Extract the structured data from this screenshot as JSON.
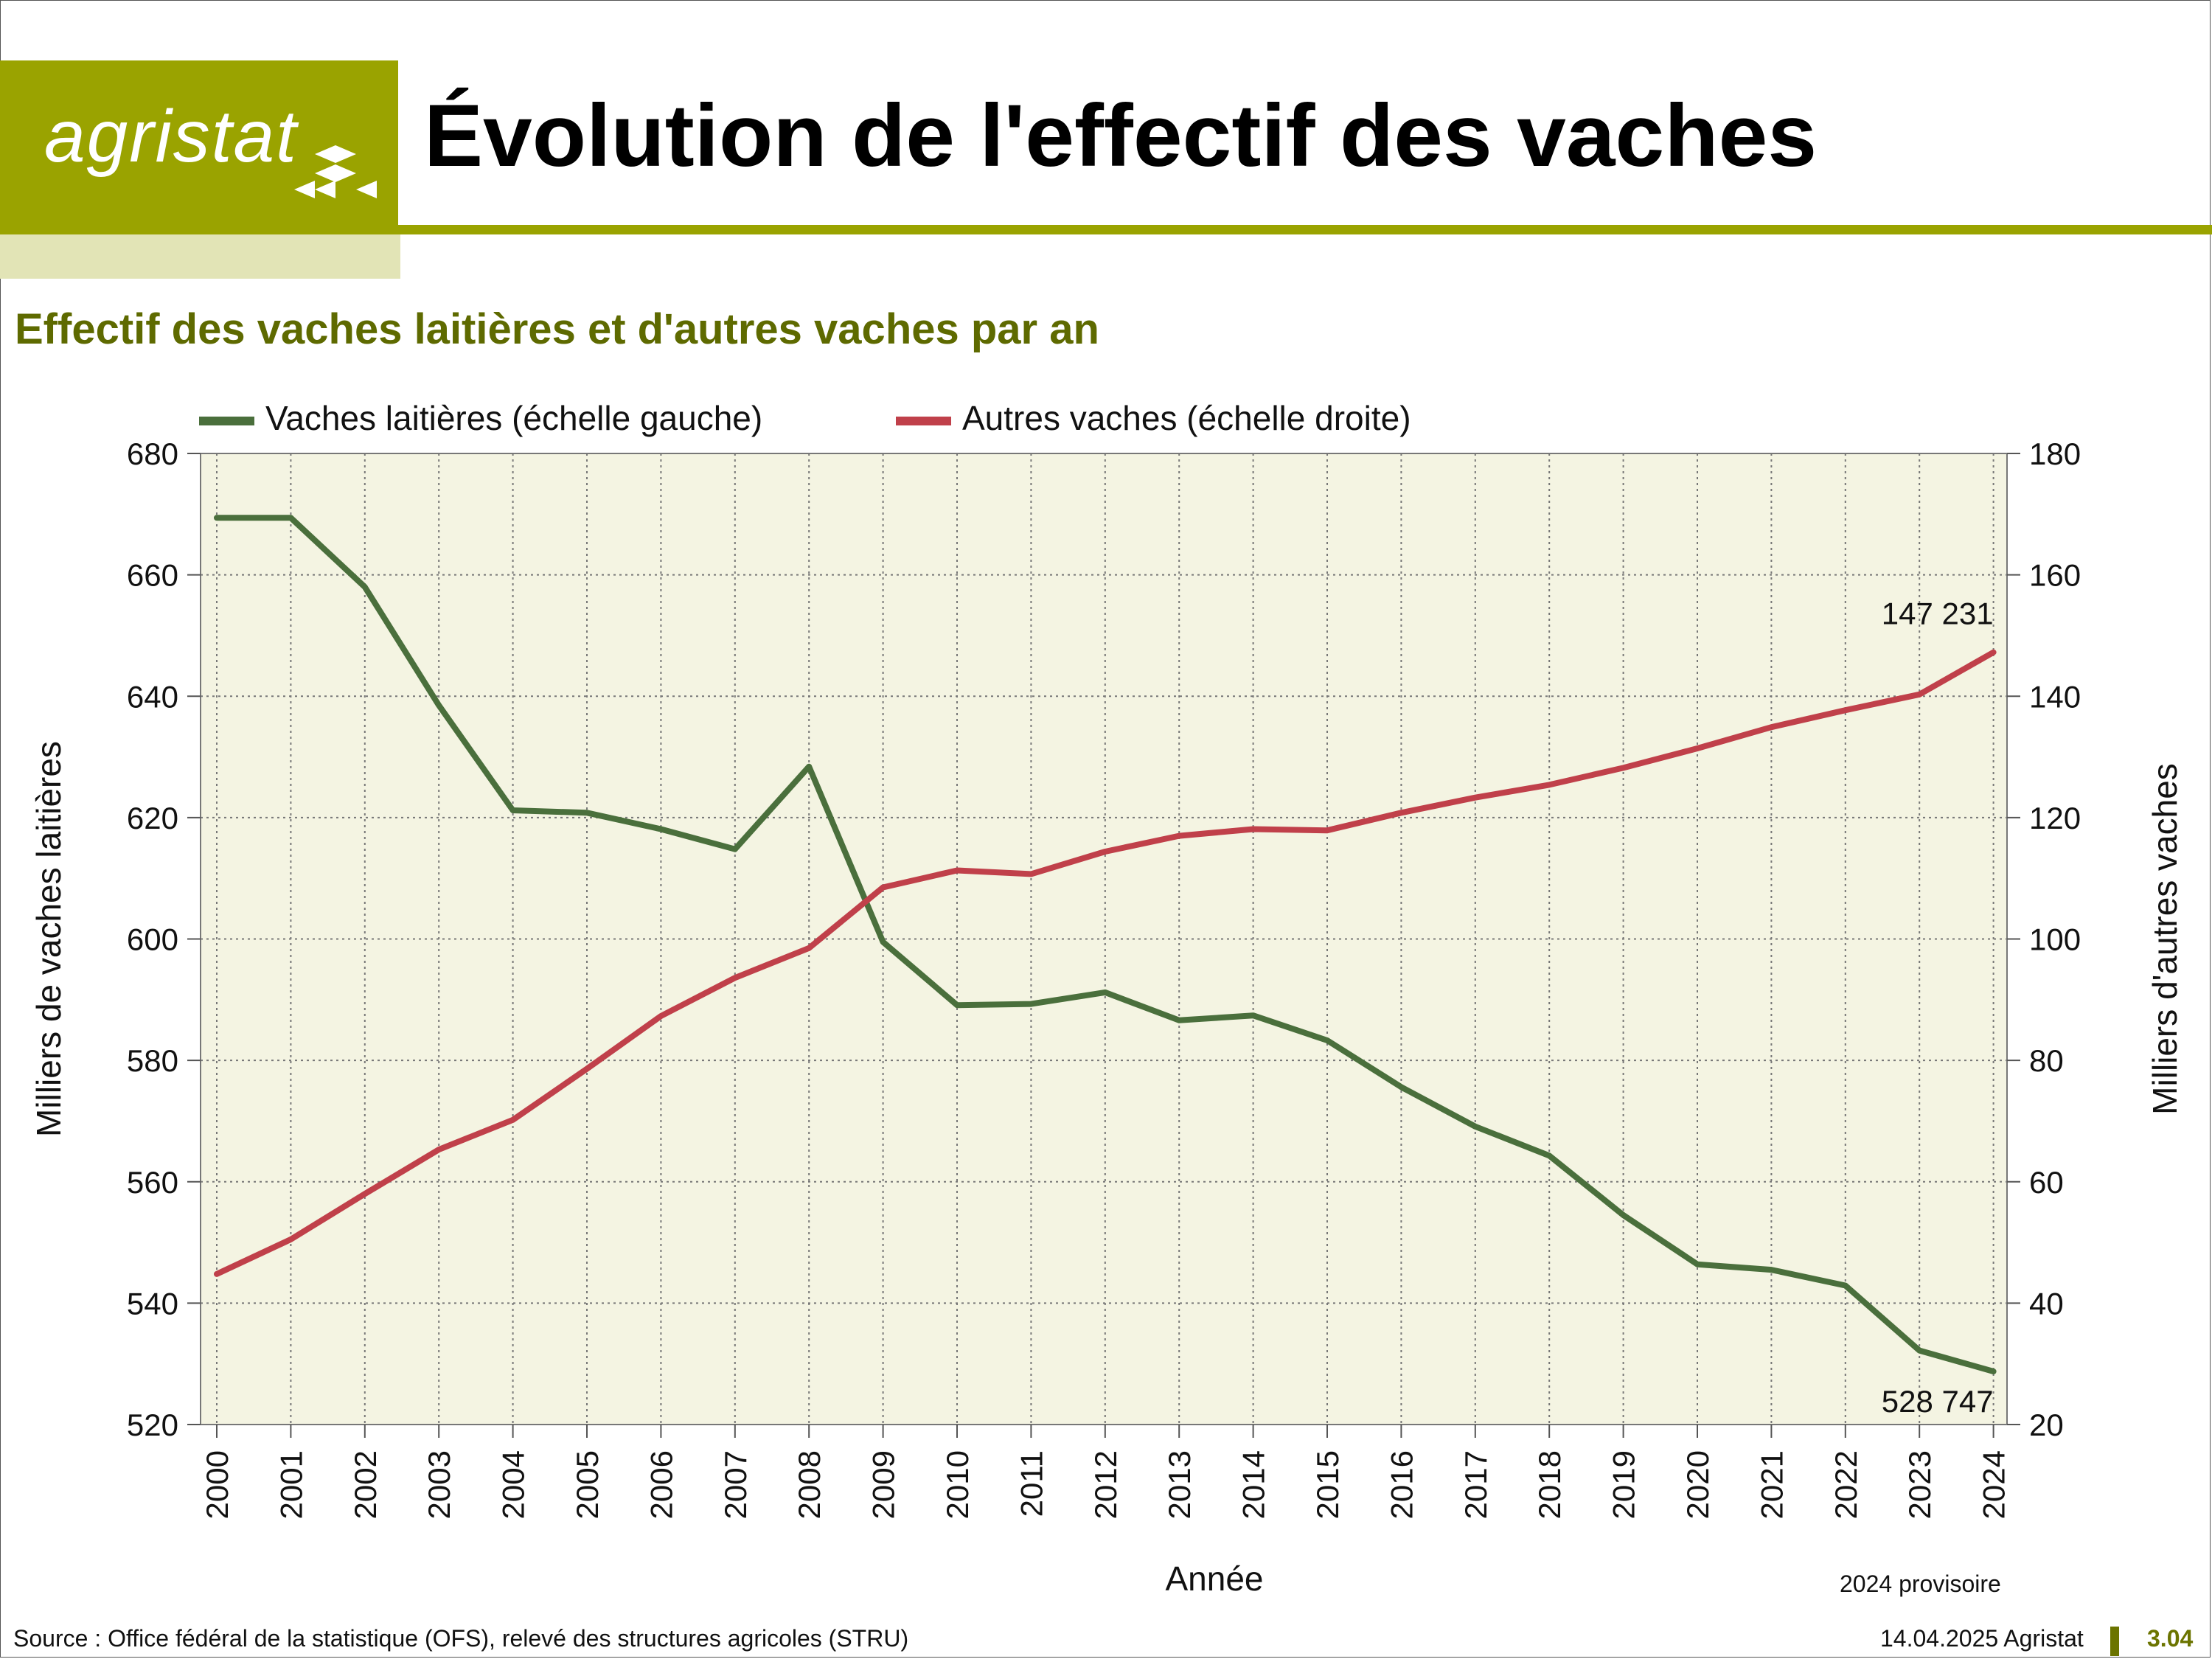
{
  "header": {
    "logo_text": "agristat",
    "title": "Évolution de l'effectif des vaches"
  },
  "subtitle": "Effectif des vaches laitières et d'autres vaches par an",
  "note": "2024 provisoire",
  "footer": {
    "source": "Source : Office fédéral de la statistique (OFS), relevé des structures agricoles (STRU)",
    "date": "14.04.2025 Agristat",
    "page": "3.04"
  },
  "colors": {
    "brand": "#9aa300",
    "brand_light": "#e2e4b6",
    "plot_bg": "#f4f4e2",
    "dairy": "#4a6f3c",
    "other": "#c0404a"
  },
  "chart_data": {
    "type": "line",
    "xlabel": "Année",
    "ylabel_left": "Milliers de vaches laitières",
    "ylabel_right": "Milliers d'autres vaches",
    "grid": true,
    "legend_position": "top",
    "categories": [
      "2000",
      "2001",
      "2002",
      "2003",
      "2004",
      "2005",
      "2006",
      "2007",
      "2008",
      "2009",
      "2010",
      "2011",
      "2012",
      "2013",
      "2014",
      "2015",
      "2016",
      "2017",
      "2018",
      "2019",
      "2020",
      "2021",
      "2022",
      "2023",
      "2024"
    ],
    "ylim_left": [
      520,
      680
    ],
    "yticks_left": [
      520,
      540,
      560,
      580,
      600,
      620,
      640,
      660,
      680
    ],
    "ylim_right": [
      20,
      180
    ],
    "yticks_right": [
      20,
      40,
      60,
      80,
      100,
      120,
      140,
      160,
      180
    ],
    "series": [
      {
        "name": "Vaches laitières (échelle gauche)",
        "axis": "left",
        "color": "#4a6f3c",
        "values": [
          669.4,
          669.4,
          658.0,
          638.5,
          621.2,
          620.8,
          618.1,
          614.8,
          628.4,
          599.5,
          589.1,
          589.3,
          591.2,
          586.6,
          587.4,
          583.3,
          575.6,
          569.1,
          564.3,
          554.5,
          546.4,
          545.5,
          542.9,
          532.2,
          528.747
        ],
        "end_label": "528 747"
      },
      {
        "name": "Autres vaches (échelle droite)",
        "axis": "right",
        "color": "#c0404a",
        "values": [
          44.8,
          50.5,
          58.0,
          65.3,
          70.2,
          78.6,
          87.3,
          93.6,
          98.5,
          108.5,
          111.3,
          110.7,
          114.4,
          117.0,
          118.1,
          117.9,
          120.8,
          123.3,
          125.4,
          128.2,
          131.4,
          134.9,
          137.7,
          140.3,
          147.231
        ],
        "end_label": "147 231"
      }
    ]
  }
}
